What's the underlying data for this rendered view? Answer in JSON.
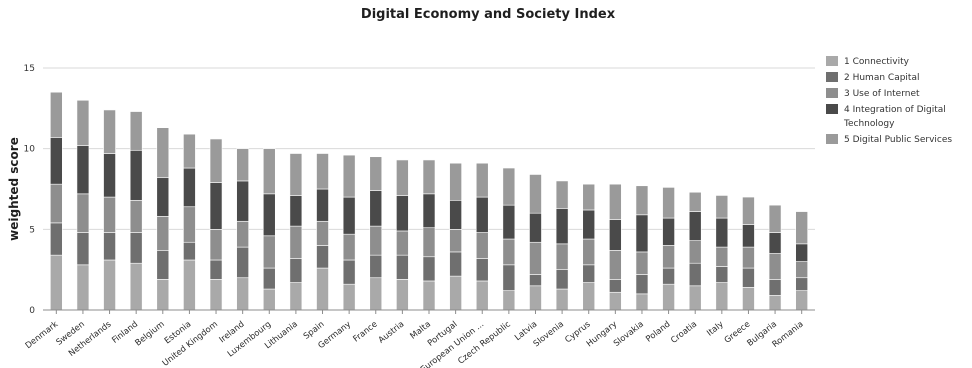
{
  "chart_data": {
    "type": "bar",
    "stacked": true,
    "title": "Digital Economy and Society Index",
    "xlabel": "",
    "ylabel": "weighted score",
    "ylim": [
      0,
      15
    ],
    "yticks": [
      0,
      5,
      10,
      15
    ],
    "grid": true,
    "legend_position": "right",
    "categories": [
      "Denmark",
      "Sweden",
      "Netherlands",
      "Finland",
      "Belgium",
      "Estonia",
      "United Kingdom",
      "Ireland",
      "Luxembourg",
      "Lithuania",
      "Spain",
      "Germany",
      "France",
      "Austria",
      "Malta",
      "Portugal",
      "European Union ...",
      "Czech Republic",
      "Latvia",
      "Slovenia",
      "Cyprus",
      "Hungary",
      "Slovakia",
      "Poland",
      "Croatia",
      "Italy",
      "Greece",
      "Bulgaria",
      "Romania"
    ],
    "series": [
      {
        "name": "1 Connectivity",
        "color": "#a9a9a9",
        "values": [
          3.4,
          2.8,
          3.1,
          2.9,
          1.9,
          3.1,
          1.9,
          2.0,
          1.3,
          1.7,
          2.6,
          1.6,
          2.0,
          1.9,
          1.8,
          2.1,
          1.8,
          1.2,
          1.5,
          1.3,
          1.7,
          1.1,
          1.0,
          1.6,
          1.5,
          1.7,
          1.4,
          0.9,
          1.2
        ]
      },
      {
        "name": "2 Human Capital",
        "color": "#6f6f6f",
        "values": [
          2.0,
          2.0,
          1.7,
          1.9,
          1.8,
          1.1,
          1.2,
          1.9,
          1.3,
          1.5,
          1.4,
          1.5,
          1.4,
          1.5,
          1.5,
          1.5,
          1.4,
          1.6,
          0.7,
          1.2,
          1.1,
          0.8,
          1.2,
          1.0,
          1.4,
          1.0,
          1.2,
          1.0,
          0.8
        ]
      },
      {
        "name": "3 Use of Internet",
        "color": "#8e8e8e",
        "values": [
          2.4,
          2.4,
          2.2,
          2.0,
          2.1,
          2.2,
          1.9,
          1.6,
          2.0,
          2.0,
          1.5,
          1.6,
          1.8,
          1.5,
          1.8,
          1.4,
          1.6,
          1.6,
          2.0,
          1.6,
          1.6,
          1.8,
          1.4,
          1.4,
          1.4,
          1.2,
          1.3,
          1.6,
          1.0
        ]
      },
      {
        "name": "4 Integration of Digital Technology",
        "color": "#4a4a4a",
        "values": [
          2.9,
          3.0,
          2.7,
          3.1,
          2.4,
          2.4,
          2.9,
          2.5,
          2.6,
          1.9,
          2.0,
          2.3,
          2.2,
          2.2,
          2.1,
          1.8,
          2.2,
          2.1,
          1.8,
          2.2,
          1.8,
          1.9,
          2.3,
          1.7,
          1.8,
          1.8,
          1.4,
          1.3,
          1.1
        ]
      },
      {
        "name": "5 Digital Public Services",
        "color": "#9a9a9a",
        "values": [
          2.8,
          2.8,
          2.7,
          2.4,
          3.1,
          2.1,
          2.7,
          2.0,
          2.8,
          2.6,
          2.2,
          2.6,
          2.1,
          2.2,
          2.1,
          2.3,
          2.1,
          2.3,
          2.4,
          1.7,
          1.6,
          2.2,
          1.8,
          1.9,
          1.2,
          1.4,
          1.7,
          1.7,
          2.0
        ]
      }
    ]
  }
}
